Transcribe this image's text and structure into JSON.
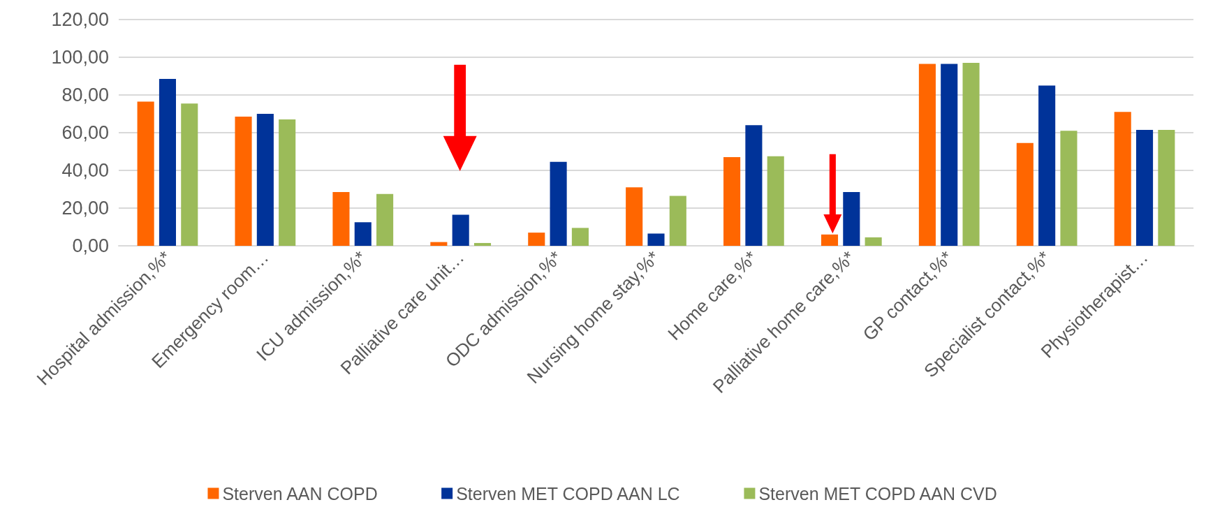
{
  "chart_data": {
    "type": "bar",
    "categories": [
      "Hospital admission,%*",
      "Emergency room…",
      "ICU admission,%*",
      "Palliative care unit…",
      "ODC admission,%*",
      "Nursing home stay,%*",
      "Home care,%*",
      "Palliative home care,%*",
      "GP contact,%*",
      "Specialist contact,%*",
      "Physiotherapist…"
    ],
    "series": [
      {
        "name": "Sterven AAN COPD",
        "color": "#ff6600",
        "values": [
          76.5,
          68.5,
          28.5,
          2,
          7,
          31,
          47,
          6,
          96.5,
          54.5,
          71
        ]
      },
      {
        "name": "Sterven MET COPD AAN LC",
        "color": "#003399",
        "values": [
          88.5,
          70,
          12.5,
          16.5,
          44.5,
          6.5,
          64,
          28.5,
          96.5,
          85,
          61.5
        ]
      },
      {
        "name": "Sterven MET COPD AAN CVD",
        "color": "#9bbb59",
        "values": [
          75.5,
          67,
          27.5,
          1.5,
          9.5,
          26.5,
          47.5,
          4.5,
          97,
          61,
          61.5
        ]
      }
    ],
    "ylim": [
      0,
      120
    ],
    "yticks": [
      {
        "value": 0,
        "label": "0,00"
      },
      {
        "value": 20,
        "label": "20,00"
      },
      {
        "value": 40,
        "label": "40,00"
      },
      {
        "value": 60,
        "label": "60,00"
      },
      {
        "value": 80,
        "label": "80,00"
      },
      {
        "value": 100,
        "label": "100,00"
      },
      {
        "value": 120,
        "label": "120,00"
      }
    ],
    "grid": "y",
    "legend": "bottom"
  }
}
